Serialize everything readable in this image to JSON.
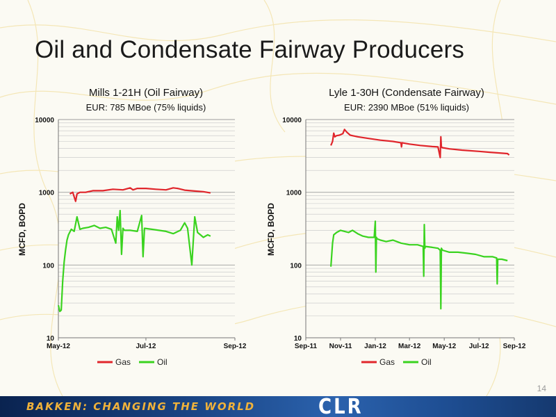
{
  "slide": {
    "title": "Oil and Condensate Fairway Producers",
    "page_number": "14"
  },
  "footer": {
    "tagline": "BAKKEN: CHANGING THE WORLD",
    "logo": "CLR"
  },
  "chart_data": [
    {
      "type": "line",
      "title": "Mills 1-21H (Oil Fairway)",
      "subtitle": "EUR: 785 MBoe (75% liquids)",
      "ylabel": "MCFD, BOPD",
      "yscale": "log",
      "ylim": [
        10,
        10000
      ],
      "yticks": [
        10,
        100,
        1000,
        10000
      ],
      "ytick_labels": [
        "10",
        "100",
        "1000",
        "10000"
      ],
      "xlim": [
        "2012-05-01",
        "2012-09-01"
      ],
      "xticks": [
        "2012-05-01",
        "2012-07-01",
        "2012-09-01"
      ],
      "xtick_labels": [
        "May-12",
        "Jul-12",
        "Sep-12"
      ],
      "legend": "bottom",
      "grid": true,
      "series": [
        {
          "name": "Gas",
          "color": "#e0252b",
          "x": [
            "2012-05-09",
            "2012-05-11",
            "2012-05-13",
            "2012-05-14",
            "2012-05-16",
            "2012-05-20",
            "2012-05-25",
            "2012-06-01",
            "2012-06-08",
            "2012-06-15",
            "2012-06-20",
            "2012-06-22",
            "2012-06-25",
            "2012-07-01",
            "2012-07-08",
            "2012-07-15",
            "2012-07-20",
            "2012-07-23",
            "2012-07-28",
            "2012-08-04",
            "2012-08-10",
            "2012-08-15"
          ],
          "y": [
            950,
            1000,
            750,
            950,
            1000,
            1000,
            1050,
            1050,
            1100,
            1080,
            1150,
            1080,
            1130,
            1130,
            1100,
            1080,
            1150,
            1130,
            1070,
            1040,
            1020,
            980
          ]
        },
        {
          "name": "Oil",
          "color": "#3ad31f",
          "x": [
            "2012-05-01",
            "2012-05-02",
            "2012-05-03",
            "2012-05-04",
            "2012-05-05",
            "2012-05-06",
            "2012-05-07",
            "2012-05-08",
            "2012-05-10",
            "2012-05-12",
            "2012-05-14",
            "2012-05-16",
            "2012-05-18",
            "2012-05-22",
            "2012-05-26",
            "2012-05-30",
            "2012-06-03",
            "2012-06-07",
            "2012-06-10",
            "2012-06-11",
            "2012-06-12",
            "2012-06-13",
            "2012-06-14",
            "2012-06-15",
            "2012-06-16",
            "2012-06-20",
            "2012-06-25",
            "2012-06-28",
            "2012-06-29",
            "2012-06-30",
            "2012-07-05",
            "2012-07-10",
            "2012-07-15",
            "2012-07-20",
            "2012-07-25",
            "2012-07-28",
            "2012-07-30",
            "2012-08-02",
            "2012-08-04",
            "2012-08-06",
            "2012-08-08",
            "2012-08-10",
            "2012-08-13",
            "2012-08-15"
          ],
          "y": [
            28,
            23,
            24,
            60,
            110,
            160,
            220,
            260,
            310,
            290,
            460,
            310,
            320,
            330,
            350,
            320,
            330,
            310,
            200,
            460,
            300,
            560,
            140,
            320,
            300,
            300,
            290,
            480,
            130,
            320,
            310,
            300,
            290,
            270,
            300,
            380,
            320,
            100,
            460,
            280,
            260,
            240,
            260,
            250
          ]
        }
      ]
    },
    {
      "type": "line",
      "title": "Lyle 1-30H (Condensate Fairway)",
      "subtitle": "EUR: 2390 MBoe (51% liquids)",
      "ylabel": "MCFD, BOPD",
      "yscale": "log",
      "ylim": [
        10,
        10000
      ],
      "yticks": [
        10,
        100,
        1000,
        10000
      ],
      "ytick_labels": [
        "10",
        "100",
        "1000",
        "10000"
      ],
      "xlim": [
        "2011-09-01",
        "2012-09-01"
      ],
      "xticks": [
        "2011-09-01",
        "2011-11-01",
        "2012-01-01",
        "2012-03-01",
        "2012-05-01",
        "2012-07-01",
        "2012-09-01"
      ],
      "xtick_labels": [
        "Sep-11",
        "Nov-11",
        "Jan-12",
        "Mar-12",
        "May-12",
        "Jul-12",
        "Sep-12"
      ],
      "legend": "bottom",
      "grid": true,
      "series": [
        {
          "name": "Gas",
          "color": "#e0252b",
          "x": [
            "2011-10-15",
            "2011-10-18",
            "2011-10-20",
            "2011-10-22",
            "2011-10-25",
            "2011-10-30",
            "2011-11-05",
            "2011-11-08",
            "2011-11-12",
            "2011-11-18",
            "2011-12-01",
            "2011-12-20",
            "2012-01-10",
            "2012-02-01",
            "2012-02-15",
            "2012-02-16",
            "2012-02-17",
            "2012-03-01",
            "2012-03-20",
            "2012-04-10",
            "2012-04-20",
            "2012-04-24",
            "2012-04-25",
            "2012-04-26",
            "2012-04-28",
            "2012-05-10",
            "2012-06-01",
            "2012-07-01",
            "2012-07-20",
            "2012-08-10",
            "2012-08-20",
            "2012-08-23"
          ],
          "y": [
            4400,
            5000,
            6500,
            5800,
            6000,
            6100,
            6400,
            7300,
            6700,
            6100,
            5800,
            5500,
            5200,
            5000,
            4800,
            4200,
            4800,
            4600,
            4400,
            4250,
            4200,
            3000,
            5800,
            4200,
            4100,
            3950,
            3800,
            3650,
            3550,
            3450,
            3400,
            3250
          ]
        },
        {
          "name": "Oil",
          "color": "#3ad31f",
          "x": [
            "2011-10-15",
            "2011-10-18",
            "2011-10-20",
            "2011-10-25",
            "2011-11-01",
            "2011-11-08",
            "2011-11-15",
            "2011-11-22",
            "2011-12-01",
            "2011-12-10",
            "2011-12-20",
            "2011-12-30",
            "2012-01-01",
            "2012-01-02",
            "2012-01-03",
            "2012-01-04",
            "2012-01-10",
            "2012-01-20",
            "2012-02-01",
            "2012-02-15",
            "2012-03-01",
            "2012-03-15",
            "2012-03-25",
            "2012-03-26",
            "2012-03-27",
            "2012-03-28",
            "2012-03-29",
            "2012-04-10",
            "2012-04-20",
            "2012-04-24",
            "2012-04-25",
            "2012-04-26",
            "2012-04-28",
            "2012-05-10",
            "2012-05-25",
            "2012-06-10",
            "2012-06-25",
            "2012-07-10",
            "2012-07-25",
            "2012-08-01",
            "2012-08-02",
            "2012-08-03",
            "2012-08-10",
            "2012-08-20"
          ],
          "y": [
            95,
            200,
            260,
            280,
            300,
            290,
            280,
            300,
            270,
            250,
            240,
            240,
            400,
            80,
            240,
            230,
            220,
            210,
            220,
            200,
            190,
            190,
            180,
            70,
            360,
            170,
            180,
            175,
            170,
            160,
            25,
            170,
            160,
            150,
            150,
            145,
            140,
            130,
            130,
            125,
            55,
            120,
            120,
            115
          ]
        }
      ]
    }
  ]
}
